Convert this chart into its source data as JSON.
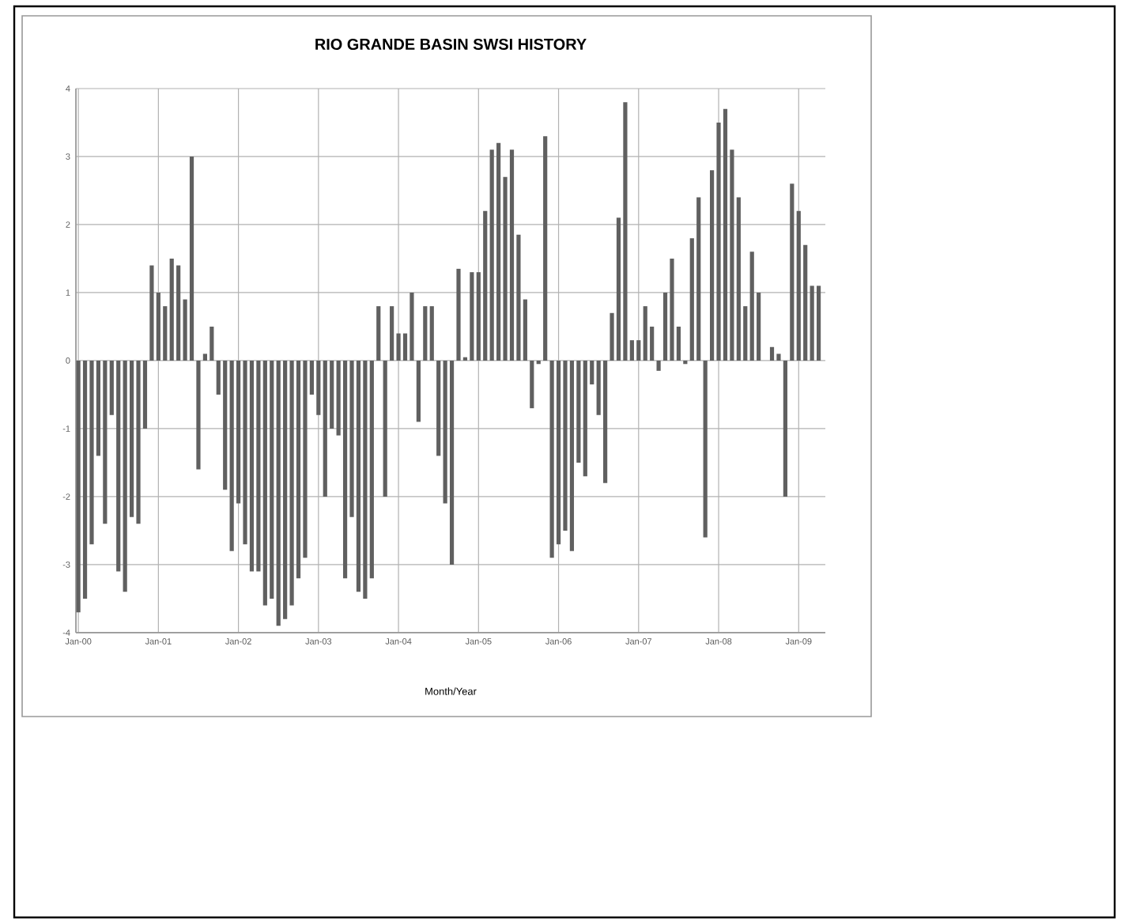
{
  "chart_data": {
    "type": "bar",
    "title": "RIO GRANDE BASIN SWSI HISTORY",
    "xlabel": "Month/Year",
    "x": [
      "2000-01",
      "2000-02",
      "2000-03",
      "2000-04",
      "2000-05",
      "2000-06",
      "2000-07",
      "2000-08",
      "2000-09",
      "2000-10",
      "2000-11",
      "2000-12",
      "2001-01",
      "2001-02",
      "2001-03",
      "2001-04",
      "2001-05",
      "2001-06",
      "2001-07",
      "2001-08",
      "2001-09",
      "2001-10",
      "2001-11",
      "2001-12",
      "2002-01",
      "2002-02",
      "2002-03",
      "2002-04",
      "2002-05",
      "2002-06",
      "2002-07",
      "2002-08",
      "2002-09",
      "2002-10",
      "2002-11",
      "2002-12",
      "2003-01",
      "2003-02",
      "2003-03",
      "2003-04",
      "2003-05",
      "2003-06",
      "2003-07",
      "2003-08",
      "2003-09",
      "2003-10",
      "2003-11",
      "2003-12",
      "2004-01",
      "2004-02",
      "2004-03",
      "2004-04",
      "2004-05",
      "2004-06",
      "2004-07",
      "2004-08",
      "2004-09",
      "2004-10",
      "2004-11",
      "2004-12",
      "2005-01",
      "2005-02",
      "2005-03",
      "2005-04",
      "2005-05",
      "2005-06",
      "2005-07",
      "2005-08",
      "2005-09",
      "2005-10",
      "2005-11",
      "2005-12",
      "2006-01",
      "2006-02",
      "2006-03",
      "2006-04",
      "2006-05",
      "2006-06",
      "2006-07",
      "2006-08",
      "2006-09",
      "2006-10",
      "2006-11",
      "2006-12",
      "2007-01",
      "2007-02",
      "2007-03",
      "2007-04",
      "2007-05",
      "2007-06",
      "2007-07",
      "2007-08",
      "2007-09",
      "2007-10",
      "2007-11",
      "2007-12",
      "2008-01",
      "2008-02",
      "2008-03",
      "2008-04",
      "2008-05",
      "2008-06",
      "2008-07",
      "2008-08",
      "2008-09",
      "2008-10",
      "2008-11",
      "2008-12",
      "2009-01",
      "2009-02",
      "2009-03",
      "2009-04"
    ],
    "values": [
      -3.7,
      -3.5,
      -2.7,
      -1.4,
      -2.4,
      -0.8,
      -3.1,
      -3.4,
      -2.3,
      -2.4,
      -1.0,
      1.4,
      1.0,
      0.8,
      1.5,
      1.4,
      0.9,
      3.0,
      -1.6,
      0.1,
      0.5,
      -0.5,
      -1.9,
      -2.8,
      -2.1,
      -2.7,
      -3.1,
      -3.1,
      -3.6,
      -3.5,
      -3.9,
      -3.8,
      -3.6,
      -3.2,
      -2.9,
      -0.5,
      -0.8,
      -2.0,
      -1.0,
      -1.1,
      -3.2,
      -2.3,
      -3.4,
      -3.5,
      -3.2,
      0.8,
      -2.0,
      0.8,
      0.4,
      0.4,
      1.0,
      -0.9,
      0.8,
      0.8,
      -1.4,
      -2.1,
      -3.0,
      1.35,
      0.05,
      1.3,
      1.3,
      2.2,
      3.1,
      3.2,
      2.7,
      3.1,
      1.85,
      0.9,
      -0.7,
      -0.05,
      3.3,
      -2.9,
      -2.7,
      -2.5,
      -2.8,
      -1.5,
      -1.7,
      -0.35,
      -0.8,
      -1.8,
      0.7,
      2.1,
      3.8,
      0.3,
      0.3,
      0.8,
      0.5,
      -0.15,
      1.0,
      1.5,
      0.5,
      -0.05,
      1.8,
      2.4,
      -2.6,
      2.8,
      3.5,
      3.7,
      3.1,
      2.4,
      0.8,
      1.6,
      1.0,
      null,
      0.2,
      0.1,
      -2.0,
      2.6,
      2.2,
      1.7,
      1.1,
      1.1
    ],
    "color": "#606060",
    "xlim": [
      "1999-12-20",
      "2009-05-01"
    ],
    "xticks": [
      {
        "value": "2000-01",
        "label": "Jan-00"
      },
      {
        "value": "2001-01",
        "label": "Jan-01"
      },
      {
        "value": "2002-01",
        "label": "Jan-02"
      },
      {
        "value": "2003-01",
        "label": "Jan-03"
      },
      {
        "value": "2004-01",
        "label": "Jan-04"
      },
      {
        "value": "2005-01",
        "label": "Jan-05"
      },
      {
        "value": "2006-01",
        "label": "Jan-06"
      },
      {
        "value": "2007-01",
        "label": "Jan-07"
      },
      {
        "value": "2008-01",
        "label": "Jan-08"
      },
      {
        "value": "2009-01",
        "label": "Jan-09"
      }
    ],
    "ylim": [
      -4,
      4
    ],
    "yticks": [
      -4,
      -3,
      -2,
      -1,
      0,
      1,
      2,
      3,
      4
    ],
    "grid": true
  }
}
